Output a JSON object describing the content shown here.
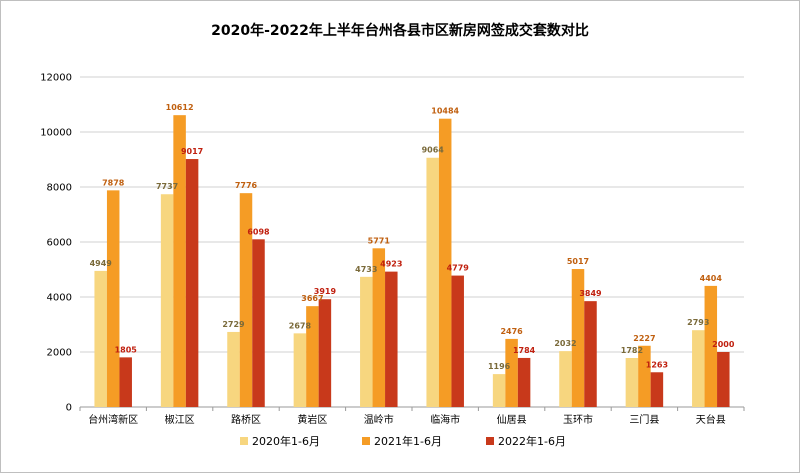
{
  "chart_data": {
    "type": "bar",
    "title": "2020年-2022年上半年台州各县市区新房网签成交套数对比",
    "xlabel": "",
    "ylabel": "",
    "ylim": [
      0,
      12000
    ],
    "yticks": [
      0,
      2000,
      4000,
      6000,
      8000,
      10000,
      12000
    ],
    "grid": true,
    "legend_position": "bottom",
    "categories": [
      "台州湾新区",
      "椒江区",
      "路桥区",
      "黄岩区",
      "温岭市",
      "临海市",
      "仙居县",
      "玉环市",
      "三门县",
      "天台县"
    ],
    "series": [
      {
        "name": "2020年1-6月",
        "color": "#f7d67f",
        "label_color": "#7a6a3a",
        "values": [
          4949,
          7737,
          2729,
          2678,
          4733,
          9064,
          1196,
          2032,
          1782,
          2793
        ]
      },
      {
        "name": "2021年1-6月",
        "color": "#f59c25",
        "label_color": "#c06010",
        "values": [
          7878,
          10612,
          7776,
          3667,
          5771,
          10484,
          2476,
          5017,
          2227,
          4404
        ]
      },
      {
        "name": "2022年1-6月",
        "color": "#c8391b",
        "label_color": "#c0200f",
        "values": [
          1805,
          9017,
          6098,
          3919,
          4923,
          4779,
          1784,
          3849,
          1263,
          2000
        ]
      }
    ]
  }
}
